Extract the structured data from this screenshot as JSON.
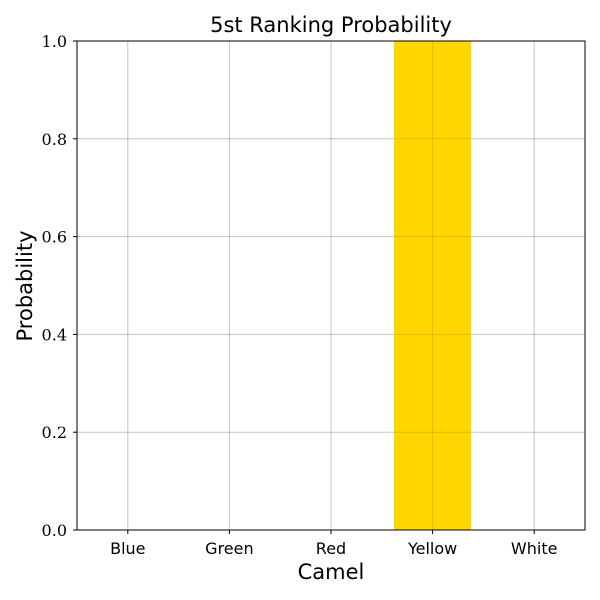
{
  "chart_data": {
    "type": "bar",
    "title": "5st Ranking Probability",
    "xlabel": "Camel",
    "ylabel": "Probability",
    "categories": [
      "Blue",
      "Green",
      "Red",
      "Yellow",
      "White"
    ],
    "values": [
      0.0,
      0.0,
      0.0,
      1.0,
      0.0
    ],
    "colors": [
      "#0000ff",
      "#008000",
      "#ff0000",
      "#ffd700",
      "#ffffff"
    ],
    "ylim": [
      0,
      1
    ],
    "yticks": [
      "0.0",
      "0.2",
      "0.4",
      "0.6",
      "0.8",
      "1.0"
    ],
    "grid": true
  }
}
